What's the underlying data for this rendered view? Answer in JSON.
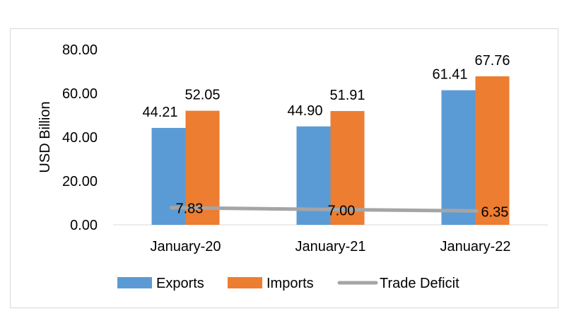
{
  "chart_data": {
    "type": "bar",
    "title": "",
    "xlabel": "",
    "ylabel": "USD Billion",
    "ylim": [
      0,
      80
    ],
    "yticks": [
      "0.00",
      "20.00",
      "40.00",
      "60.00",
      "80.00"
    ],
    "grid": false,
    "legend_position": "bottom",
    "categories": [
      "January-20",
      "January-21",
      "January-22"
    ],
    "series": [
      {
        "name": "Exports",
        "type": "bar",
        "color": "#5b9bd5",
        "values": [
          44.21,
          44.9,
          61.41
        ],
        "labels": [
          "44.21",
          "44.90",
          "61.41"
        ]
      },
      {
        "name": "Imports",
        "type": "bar",
        "color": "#ed7d31",
        "values": [
          52.05,
          51.91,
          67.76
        ],
        "labels": [
          "52.05",
          "51.91",
          "67.76"
        ]
      },
      {
        "name": "Trade Deficit",
        "type": "line",
        "color": "#a5a5a5",
        "values": [
          7.83,
          7.0,
          6.35
        ],
        "labels": [
          "7.83",
          "7.00",
          "6.35"
        ]
      }
    ]
  }
}
